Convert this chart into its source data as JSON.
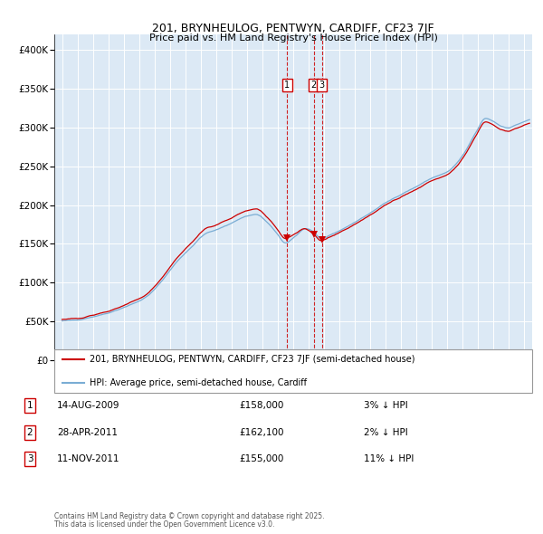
{
  "title": "201, BRYNHEULOG, PENTWYN, CARDIFF, CF23 7JF",
  "subtitle": "Price paid vs. HM Land Registry's House Price Index (HPI)",
  "legend_property": "201, BRYNHEULOG, PENTWYN, CARDIFF, CF23 7JF (semi-detached house)",
  "legend_hpi": "HPI: Average price, semi-detached house, Cardiff",
  "transactions": [
    {
      "label": "1",
      "date": "14-AUG-2009",
      "price": 158000,
      "pct": "3%",
      "dir": "↓",
      "x_year": 2009.617
    },
    {
      "label": "2",
      "date": "28-APR-2011",
      "price": 162100,
      "pct": "2%",
      "dir": "↓",
      "x_year": 2011.323
    },
    {
      "label": "3",
      "date": "11-NOV-2011",
      "price": 155000,
      "pct": "11%",
      "dir": "↓",
      "x_year": 2011.86
    }
  ],
  "ylabel_ticks": [
    "£0",
    "£50K",
    "£100K",
    "£150K",
    "£200K",
    "£250K",
    "£300K",
    "£350K",
    "£400K"
  ],
  "ytick_vals": [
    0,
    50000,
    100000,
    150000,
    200000,
    250000,
    300000,
    350000,
    400000
  ],
  "xlim": [
    1994.5,
    2025.5
  ],
  "ylim": [
    -5000,
    420000
  ],
  "property_color": "#cc0000",
  "hpi_color": "#7aadd4",
  "background_color": "#dce9f5",
  "grid_color": "#ffffff",
  "dashed_color": "#cc0000",
  "footnote1": "Contains HM Land Registry data © Crown copyright and database right 2025.",
  "footnote2": "This data is licensed under the Open Government Licence v3.0."
}
